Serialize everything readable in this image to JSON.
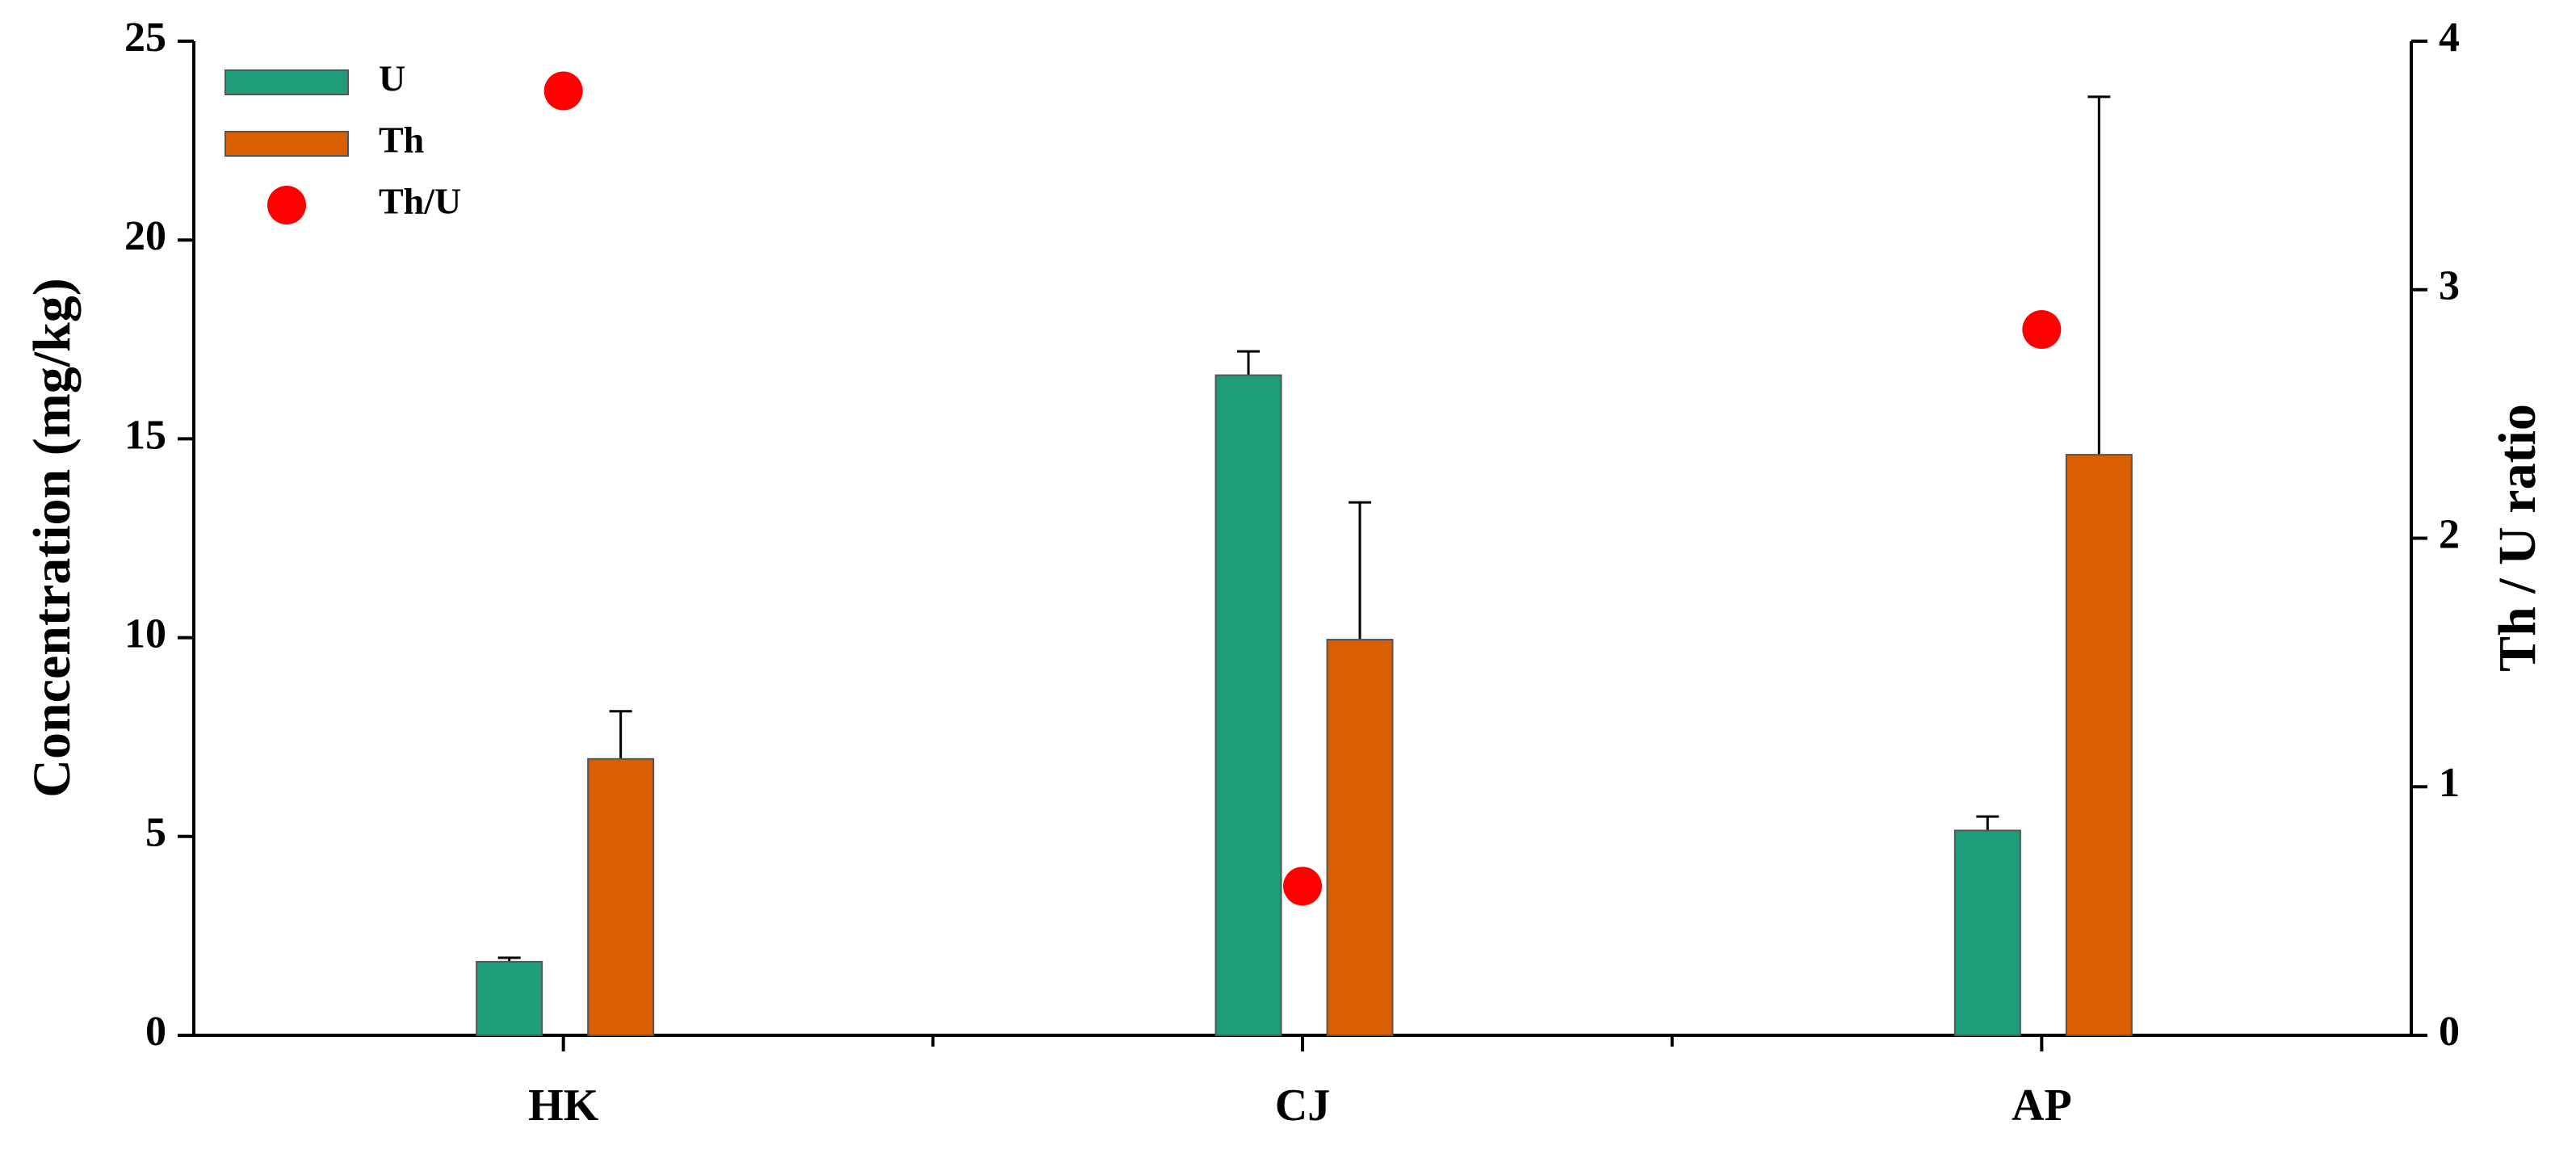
{
  "chart_data": {
    "type": "bar",
    "categories": [
      "HK",
      "CJ",
      "AP"
    ],
    "series": [
      {
        "name": "U",
        "color": "#1f9c78",
        "values": [
          1.85,
          16.6,
          5.15
        ],
        "errors": [
          0.1,
          0.6,
          0.35
        ]
      },
      {
        "name": "Th",
        "color": "#d95f02",
        "values": [
          6.95,
          9.95,
          14.6
        ],
        "errors": [
          1.2,
          3.45,
          9.0
        ]
      },
      {
        "name": "Th/U",
        "color": "#ff0000",
        "type": "scatter",
        "axis": "y2",
        "values": [
          3.8,
          0.6,
          2.84
        ]
      }
    ],
    "ylabel": "Concentration (mg/kg)",
    "y2label": "Th / U ratio",
    "ylim": [
      0,
      25
    ],
    "yticks": [
      0,
      5,
      10,
      15,
      20,
      25
    ],
    "y2lim": [
      0,
      4
    ],
    "y2ticks": [
      0,
      1,
      2,
      3,
      4
    ],
    "legend": "upper left"
  }
}
